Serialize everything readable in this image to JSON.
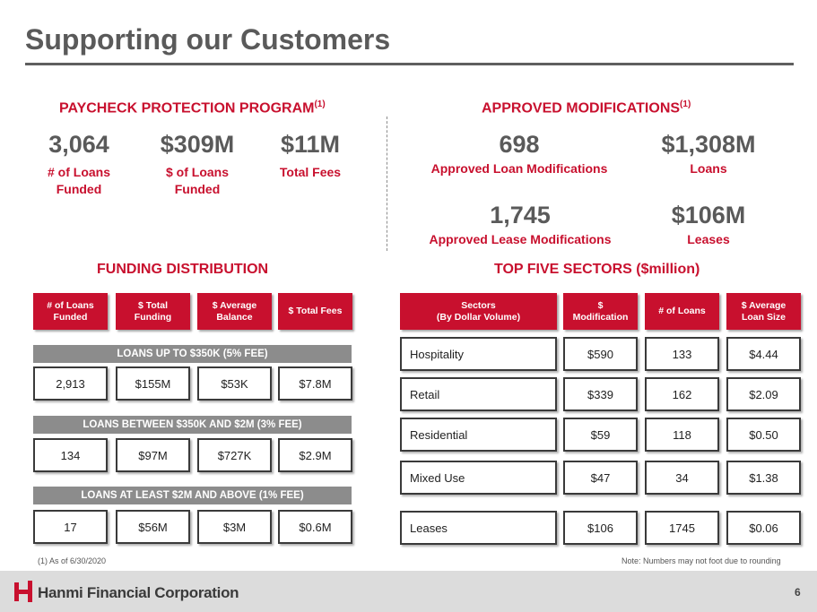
{
  "title": "Supporting our Customers",
  "ppp": {
    "heading": "PAYCHECK PROTECTION PROGRAM",
    "heading_sup": "(1)",
    "stats": [
      {
        "value": "3,064",
        "label_1": "# of Loans",
        "label_2": "Funded"
      },
      {
        "value": "$309M",
        "label_1": "$ of Loans",
        "label_2": "Funded"
      },
      {
        "value": "$11M",
        "label_1": "Total Fees",
        "label_2": ""
      }
    ]
  },
  "modifications": {
    "heading": "APPROVED MODIFICATIONS",
    "heading_sup": "(1)",
    "stats": [
      {
        "value": "698",
        "label": "Approved Loan Modifications"
      },
      {
        "value": "$1,308M",
        "label": "Loans"
      },
      {
        "value": "1,745",
        "label": "Approved Lease Modifications"
      },
      {
        "value": "$106M",
        "label": "Leases"
      }
    ]
  },
  "funding": {
    "heading": "FUNDING DISTRIBUTION",
    "headers": [
      {
        "line1": "# of Loans",
        "line2": "Funded"
      },
      {
        "line1": "$ Total",
        "line2": "Funding"
      },
      {
        "line1": "$ Average",
        "line2": "Balance"
      },
      {
        "line1": "$ Total Fees",
        "line2": ""
      }
    ],
    "groups": [
      {
        "label": "LOANS UP TO $350K (5% FEE)",
        "values": [
          "2,913",
          "$155M",
          "$53K",
          "$7.8M"
        ]
      },
      {
        "label": "LOANS BETWEEN $350K AND $2M (3% FEE)",
        "values": [
          "134",
          "$97M",
          "$727K",
          "$2.9M"
        ]
      },
      {
        "label": "LOANS AT LEAST $2M AND ABOVE (1% FEE)",
        "values": [
          "17",
          "$56M",
          "$3M",
          "$0.6M"
        ]
      }
    ]
  },
  "sectors": {
    "heading": "TOP FIVE SECTORS ($million)",
    "headers": [
      {
        "line1": "Sectors",
        "line2": "(By Dollar Volume)"
      },
      {
        "line1": "$",
        "line2": "Modification"
      },
      {
        "line1": "# of Loans",
        "line2": ""
      },
      {
        "line1": "$ Average",
        "line2": "Loan Size"
      }
    ],
    "rows": [
      {
        "sector": "Hospitality",
        "modification": "$590",
        "loans": "133",
        "avg": "$4.44"
      },
      {
        "sector": "Retail",
        "modification": "$339",
        "loans": "162",
        "avg": "$2.09"
      },
      {
        "sector": "Residential",
        "modification": "$59",
        "loans": "118",
        "avg": "$0.50"
      },
      {
        "sector": "Mixed Use",
        "modification": "$47",
        "loans": "34",
        "avg": "$1.38"
      },
      {
        "sector": "Leases",
        "modification": "$106",
        "loans": "1745",
        "avg": "$0.06"
      }
    ]
  },
  "footnote": "(1)   As of 6/30/2020",
  "note": "Note: Numbers may not foot due to rounding",
  "company": "Hanmi Financial Corporation",
  "page_number": "6",
  "colors": {
    "accent": "#c8102e",
    "title": "#5a5a5a",
    "band": "#8c8c8c"
  }
}
